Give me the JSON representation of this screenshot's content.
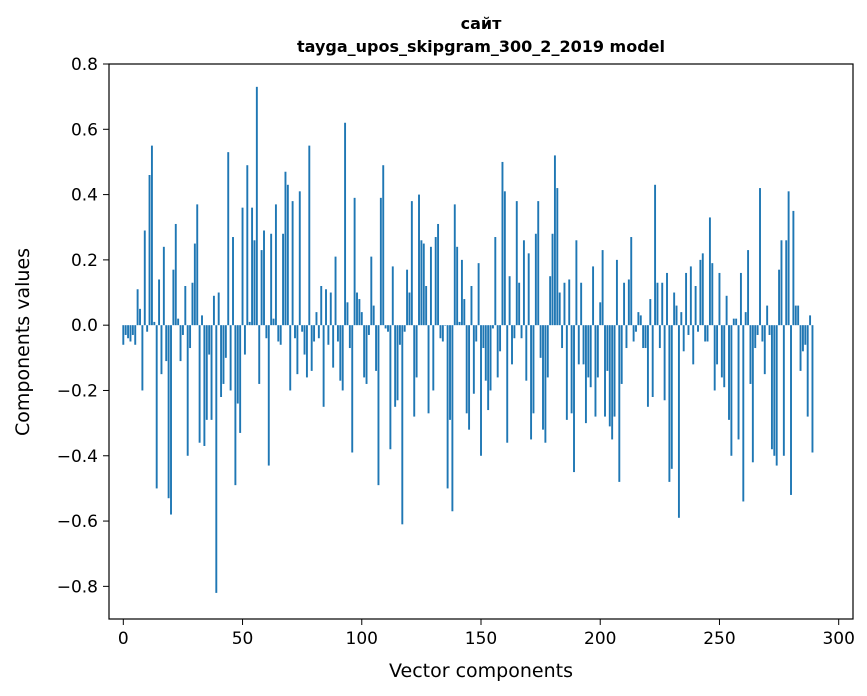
{
  "chart_data": {
    "type": "bar",
    "title": "сайт",
    "subtitle": "tayga_upos_skipgram_300_2_2019 model",
    "xlabel": "Vector components",
    "ylabel": "Components values",
    "xlim": [
      -6,
      306
    ],
    "ylim": [
      -0.9,
      0.8
    ],
    "xticks": [
      0,
      50,
      100,
      150,
      200,
      250,
      300
    ],
    "xtick_labels": [
      "0",
      "50",
      "100",
      "150",
      "200",
      "250",
      "300"
    ],
    "yticks": [
      0.8,
      0.6,
      0.4,
      0.2,
      0.0,
      -0.2,
      -0.4,
      -0.6,
      -0.8
    ],
    "ytick_labels": [
      "0.8",
      "0.6",
      "0.4",
      "0.2",
      "0.0",
      "−0.2",
      "−0.4",
      "−0.6",
      "−0.8"
    ],
    "color": "#1f77b4",
    "values": [
      -0.06,
      -0.03,
      -0.04,
      -0.05,
      -0.03,
      -0.06,
      0.11,
      0.05,
      -0.2,
      0.29,
      -0.02,
      0.46,
      0.55,
      0.01,
      -0.5,
      0.14,
      -0.15,
      0.24,
      -0.11,
      -0.53,
      -0.58,
      0.17,
      0.31,
      0.02,
      -0.11,
      -0.03,
      0.12,
      -0.4,
      -0.07,
      0.13,
      0.25,
      0.37,
      -0.36,
      0.03,
      -0.37,
      -0.29,
      -0.09,
      -0.29,
      0.09,
      -0.82,
      0.1,
      -0.22,
      -0.18,
      -0.1,
      0.53,
      -0.2,
      0.27,
      -0.49,
      -0.24,
      -0.33,
      0.36,
      -0.09,
      0.49,
      0.01,
      0.36,
      0.26,
      0.73,
      -0.18,
      0.23,
      0.29,
      -0.04,
      -0.43,
      0.28,
      0.02,
      0.37,
      -0.05,
      -0.06,
      0.28,
      0.47,
      0.43,
      -0.2,
      0.38,
      -0.04,
      -0.15,
      0.41,
      -0.02,
      -0.09,
      -0.16,
      0.55,
      -0.14,
      -0.05,
      0.04,
      -0.04,
      0.12,
      -0.25,
      0.11,
      -0.06,
      0.1,
      -0.13,
      0.21,
      -0.05,
      -0.17,
      -0.2,
      0.62,
      0.07,
      -0.07,
      -0.39,
      0.39,
      0.1,
      0.08,
      0.04,
      -0.16,
      -0.18,
      -0.03,
      0.21,
      0.06,
      -0.14,
      -0.49,
      0.39,
      0.49,
      -0.01,
      -0.02,
      -0.38,
      0.18,
      -0.25,
      -0.23,
      -0.06,
      -0.61,
      -0.02,
      0.17,
      0.1,
      0.38,
      -0.28,
      -0.16,
      0.4,
      0.26,
      0.25,
      0.12,
      -0.27,
      0.24,
      -0.2,
      0.27,
      0.31,
      -0.04,
      -0.05,
      0.0,
      -0.5,
      -0.29,
      -0.57,
      0.37,
      0.24,
      0.01,
      0.2,
      0.08,
      -0.27,
      -0.32,
      0.12,
      -0.21,
      -0.05,
      0.19,
      -0.4,
      -0.07,
      -0.17,
      -0.26,
      -0.2,
      -0.01,
      0.27,
      -0.16,
      -0.08,
      0.5,
      0.41,
      -0.36,
      0.15,
      -0.12,
      -0.04,
      0.38,
      0.13,
      -0.04,
      0.26,
      -0.17,
      0.22,
      -0.35,
      -0.27,
      0.28,
      0.38,
      -0.1,
      -0.32,
      -0.36,
      -0.16,
      0.15,
      0.28,
      0.52,
      0.42,
      0.1,
      -0.07,
      0.13,
      -0.29,
      0.14,
      -0.27,
      -0.45,
      0.26,
      -0.12,
      0.13,
      -0.12,
      -0.3,
      -0.16,
      -0.19,
      0.18,
      -0.28,
      -0.16,
      0.07,
      0.23,
      -0.28,
      -0.14,
      -0.31,
      -0.35,
      -0.28,
      0.2,
      -0.48,
      -0.18,
      0.13,
      -0.07,
      0.14,
      0.27,
      -0.05,
      -0.02,
      0.04,
      0.03,
      -0.07,
      -0.07,
      -0.25,
      0.08,
      -0.22,
      0.43,
      0.13,
      -0.07,
      0.13,
      -0.23,
      0.16,
      -0.48,
      -0.44,
      0.1,
      0.06,
      -0.59,
      0.04,
      -0.08,
      0.16,
      -0.03,
      0.18,
      -0.12,
      0.12,
      -0.02,
      0.2,
      0.22,
      -0.05,
      -0.05,
      0.33,
      0.19,
      -0.2,
      -0.12,
      0.16,
      -0.16,
      -0.19,
      0.09,
      -0.29,
      -0.4,
      0.02,
      0.02,
      -0.35,
      0.16,
      -0.54,
      0.04,
      0.23,
      -0.18,
      -0.42,
      -0.07,
      -0.03,
      0.42,
      -0.05,
      -0.15,
      0.06,
      -0.03,
      -0.38,
      -0.4,
      -0.43,
      0.17,
      0.26,
      -0.4,
      0.26,
      0.41,
      -0.52,
      0.35,
      0.06,
      0.06,
      -0.14,
      -0.08,
      -0.06,
      -0.28,
      0.03,
      -0.39
    ]
  }
}
